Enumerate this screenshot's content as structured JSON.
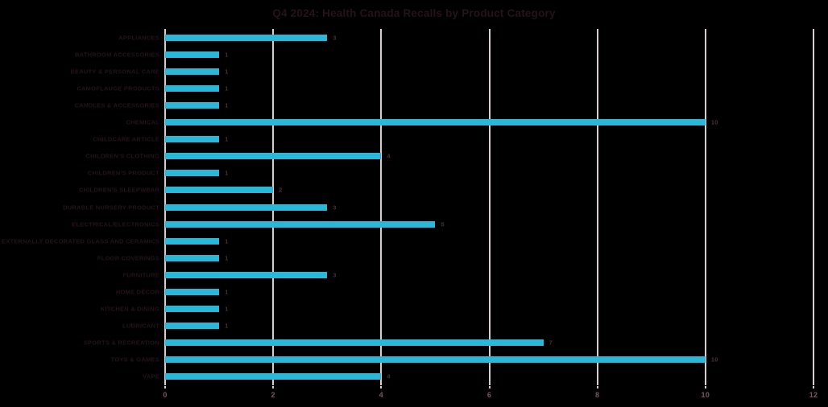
{
  "chart_data": {
    "type": "bar",
    "orientation": "horizontal",
    "title": "Q4 2024: Health Canada Recalls by Product Category",
    "categories": [
      "APPLIANCES",
      "BATHROOM ACCESSORIES",
      "BEAUTY & PERSONAL CARE",
      "CAMOFLAUGE PRODUCTS",
      "CANDLES & ACCESSORIES",
      "CHEMICAL",
      "CHILDCARE ARTICLE",
      "CHILDREN'S CLOTHING",
      "CHILDREN'S PRODUCT",
      "CHILDREN'S SLEEPWEAR",
      "DURABLE NURSERY PRODUCT",
      "ELECTRICAL/ELECTRONICS",
      "EXTERNALLY DECORATED GLASS AND CERAMICS",
      "FLOOR COVERINGS",
      "FURNITURE",
      "HOME DÉCOR",
      "KITCHEN & DINING",
      "LUBRICANT",
      "SPORTS & RECREATION",
      "TOYS & GAMES",
      "VAPE"
    ],
    "values": [
      3,
      1,
      1,
      1,
      1,
      10,
      1,
      4,
      1,
      2,
      3,
      5,
      1,
      1,
      3,
      1,
      1,
      1,
      7,
      10,
      4
    ],
    "xlabel": "",
    "ylabel": "",
    "xlim": [
      0,
      12
    ],
    "x_ticks": [
      0,
      2,
      4,
      6,
      8,
      10,
      12
    ],
    "grid": "vertical-gridlines-on",
    "legend": "none",
    "data_labels": true,
    "colors": {
      "bar": "#29b8d8",
      "background": "#000000",
      "title_text": "#241317",
      "category_text": "#241317",
      "value_text": "#4b2f37",
      "axis_tick_text": "#7d5660",
      "gridline": "#d8cdcc"
    }
  }
}
